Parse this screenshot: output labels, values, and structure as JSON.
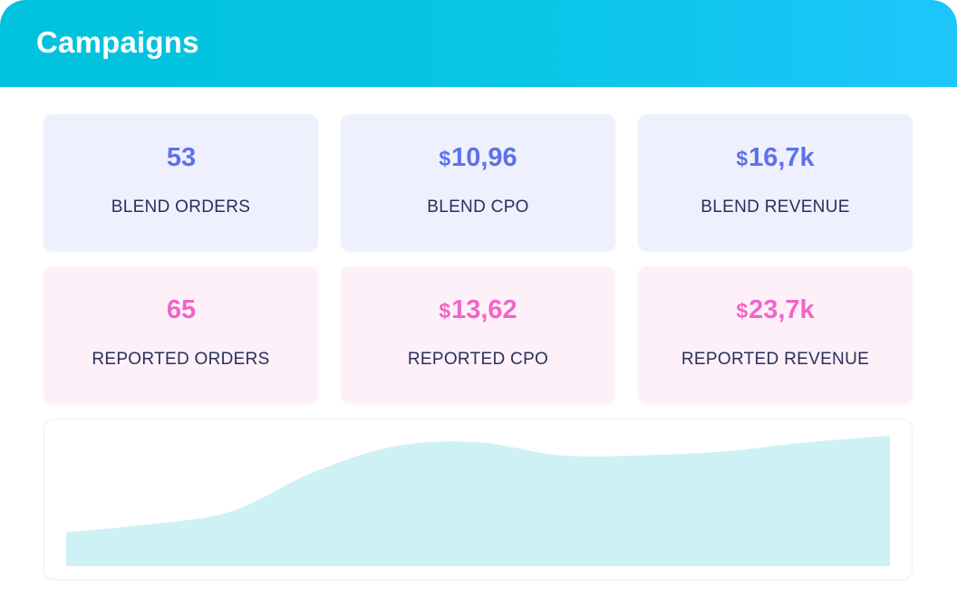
{
  "header": {
    "title": "Campaigns"
  },
  "stats": {
    "blend_orders": {
      "currency": "",
      "value": "53",
      "label": "BLEND ORDERS"
    },
    "blend_cpo": {
      "currency": "$",
      "value": "10,96",
      "label": "BLEND CPO"
    },
    "blend_revenue": {
      "currency": "$",
      "value": "16,7k",
      "label": "BLEND REVENUE"
    },
    "reported_orders": {
      "currency": "",
      "value": "65",
      "label": "REPORTED ORDERS"
    },
    "reported_cpo": {
      "currency": "$",
      "value": "13,62",
      "label": "REPORTED CPO"
    },
    "reported_revenue": {
      "currency": "$",
      "value": "23,7k",
      "label": "REPORTED REVENUE"
    }
  },
  "colors": {
    "header_start": "#00c2dc",
    "header_end": "#1ec6fb",
    "blend_accent": "#5c71ea",
    "reported_accent": "#f165c8",
    "area_fill": "#cdf1f5"
  },
  "chart_data": {
    "type": "area",
    "x": [
      0,
      1,
      2,
      3,
      4,
      5,
      6,
      7,
      8,
      9,
      10
    ],
    "y": [
      0.26,
      0.32,
      0.42,
      0.72,
      0.92,
      0.95,
      0.85,
      0.85,
      0.88,
      0.95,
      1.0
    ],
    "ylim": [
      0,
      1
    ],
    "grid": false,
    "title": "",
    "xlabel": "",
    "ylabel": ""
  }
}
